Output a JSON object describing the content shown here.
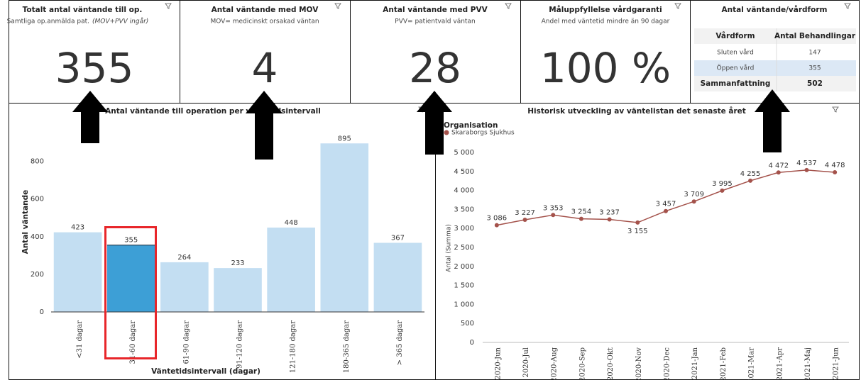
{
  "kpis": [
    {
      "title": "Totalt antal väntande till op.",
      "subtitle": "Samtliga op.anmälda pat.",
      "subtitle_note": "(MOV+PVV ingår)",
      "value": 355
    },
    {
      "title": "Antal väntande med MOV",
      "subtitle": "MOV= medicinskt orsakad väntan",
      "value": 4
    },
    {
      "title": "Antal väntande med PVV",
      "subtitle": "PVV= patientvald väntan",
      "value": 28
    },
    {
      "title": "Måluppfyllelse vårdgaranti",
      "subtitle": "Andel med väntetid mindre än 90 dagar",
      "value": "100 %"
    }
  ],
  "table": {
    "title": "Antal väntande/vårdform",
    "headers": [
      "Vårdform",
      "Antal Behandlingar"
    ],
    "rows": [
      [
        "Sluten vård",
        147
      ],
      [
        "Öppen vård",
        355
      ]
    ],
    "total": [
      "Sammanfattning",
      502
    ]
  },
  "chart_data": [
    {
      "type": "bar",
      "title": "Antal väntande till operation per väntetidsintervall",
      "categories": [
        "<31 dagar",
        "31-60 dagar",
        "61-90 dagar",
        "91-120 dagar",
        "121-180 dagar",
        "180-365 dagar",
        "> 365 dagar"
      ],
      "values": [
        423,
        355,
        264,
        233,
        448,
        895,
        367
      ],
      "colors": [
        "#c3def2",
        "#3d9fd6",
        "#c3def2",
        "#c3def2",
        "#c3def2",
        "#c3def2",
        "#c3def2"
      ],
      "ylim": [
        0,
        960
      ],
      "yticks": [
        0,
        200,
        400,
        600,
        800
      ],
      "ylabel": "Antal väntande",
      "xlabel": "Väntetidsintervall (dagar)"
    },
    {
      "type": "line",
      "title": "Historisk utveckling av väntelistan det senaste året",
      "legend_title": "Organisation",
      "categories": [
        "2020-Jun",
        "2020-Jul",
        "2020-Aug",
        "2020-Sep",
        "2020-Okt",
        "2020-Nov",
        "2020-Dec",
        "2021-Jan",
        "2021-Feb",
        "2021-Mar",
        "2021-Apr",
        "2021-Maj",
        "2021-Jun"
      ],
      "series": [
        {
          "name": "Skaraborgs Sjukhus",
          "color": "#a4524b",
          "values": [
            3086,
            3227,
            3353,
            3254,
            3237,
            3155,
            3457,
            3709,
            3995,
            4255,
            4472,
            4537,
            4478
          ],
          "value_labels": [
            "3 086",
            "3 227",
            "3 353",
            "3 254",
            "3 237",
            "3 155",
            "3 457",
            "3 709",
            "3 995",
            "4 255",
            "4 472",
            "4 537",
            "4 478"
          ]
        }
      ],
      "ylim": [
        0,
        5000
      ],
      "yticks": [
        0,
        500,
        {
          "value": 1000,
          "label": "1 000"
        },
        {
          "value": 1500,
          "label": "1 500"
        },
        {
          "value": 2000,
          "label": "2 000"
        },
        {
          "value": 2500,
          "label": "2 500"
        },
        {
          "value": 3000,
          "label": "3 000"
        },
        {
          "value": 3500,
          "label": "3 500"
        },
        {
          "value": 4000,
          "label": "4 000"
        },
        {
          "value": 4500,
          "label": "4 500"
        },
        {
          "value": 5000,
          "label": "5 000"
        }
      ],
      "ylabel": "Antal (Summa)"
    }
  ]
}
